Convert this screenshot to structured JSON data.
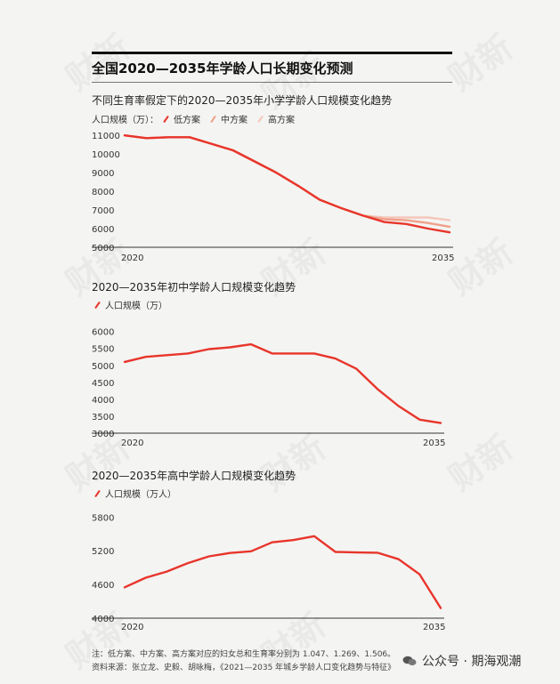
{
  "title": "全国2020—2035年学龄人口长期变化预测",
  "colors": {
    "low": "#e8352b",
    "mid": "#f0a08a",
    "high": "#f4c7bb",
    "axis": "#333333"
  },
  "charts": [
    {
      "title": "不同生育率假定下的2020—2035年小学学龄人口规模变化趋势",
      "legend_label": "人口规模（万）：",
      "legend_items": [
        "低方案",
        "中方案",
        "高方案"
      ]
    },
    {
      "title": "2020—2035年初中学龄人口规模变化趋势",
      "legend_label": "",
      "legend_items": [
        "人口规模（万）"
      ]
    },
    {
      "title": "2020—2035年高中学龄人口规模变化趋势",
      "legend_label": "",
      "legend_items": [
        "人口规模（万人）"
      ]
    }
  ],
  "chart_data": [
    {
      "type": "line",
      "title": "不同生育率假定下的2020—2035年小学学龄人口规模变化趋势",
      "ylabel": "人口规模（万）",
      "x": [
        2020,
        2021,
        2022,
        2023,
        2024,
        2025,
        2026,
        2027,
        2028,
        2029,
        2030,
        2031,
        2032,
        2033,
        2034,
        2035
      ],
      "xticks": [
        "2020",
        "2035"
      ],
      "yticks": [
        5000,
        6000,
        7000,
        8000,
        9000,
        10000,
        11000
      ],
      "ylim": [
        5000,
        11200
      ],
      "series": [
        {
          "name": "低方案",
          "values": [
            11000,
            10850,
            10900,
            10900,
            10550,
            10200,
            9600,
            9000,
            8300,
            7550,
            7100,
            6700,
            6350,
            6250,
            6000,
            5800
          ]
        },
        {
          "name": "中方案",
          "values": [
            11000,
            10850,
            10900,
            10900,
            10550,
            10200,
            9600,
            9000,
            8300,
            7550,
            7100,
            6700,
            6500,
            6450,
            6300,
            6100
          ]
        },
        {
          "name": "高方案",
          "values": [
            11000,
            10850,
            10900,
            10900,
            10550,
            10200,
            9600,
            9000,
            8300,
            7550,
            7100,
            6700,
            6600,
            6600,
            6600,
            6450
          ]
        }
      ]
    },
    {
      "type": "line",
      "title": "2020—2035年初中学龄人口规模变化趋势",
      "ylabel": "人口规模（万）",
      "x": [
        2020,
        2021,
        2022,
        2023,
        2024,
        2025,
        2026,
        2027,
        2028,
        2029,
        2030,
        2031,
        2032,
        2033,
        2034,
        2035
      ],
      "xticks": [
        "2020",
        "2035"
      ],
      "yticks": [
        3000,
        3500,
        4000,
        4500,
        5000,
        5500,
        6000
      ],
      "ylim": [
        3000,
        6200
      ],
      "series": [
        {
          "name": "人口规模（万）",
          "values": [
            5100,
            5250,
            5300,
            5350,
            5480,
            5530,
            5620,
            5350,
            5350,
            5350,
            5200,
            4900,
            4300,
            3800,
            3400,
            3300
          ]
        }
      ]
    },
    {
      "type": "line",
      "title": "2020—2035年高中学龄人口规模变化趋势",
      "ylabel": "人口规模（万人）",
      "x": [
        2020,
        2021,
        2022,
        2023,
        2024,
        2025,
        2026,
        2027,
        2028,
        2029,
        2030,
        2031,
        2032,
        2033,
        2034,
        2035
      ],
      "xticks": [
        "2020",
        "2035"
      ],
      "yticks": [
        4000,
        4600,
        5200,
        5800
      ],
      "ylim": [
        4000,
        5900
      ],
      "series": [
        {
          "name": "人口规模（万人）",
          "values": [
            4550,
            4720,
            4830,
            4980,
            5100,
            5160,
            5190,
            5350,
            5390,
            5460,
            5180,
            5170,
            5165,
            5050,
            4780,
            4180
          ]
        }
      ]
    }
  ],
  "footnote": {
    "line1": "注：低方案、中方案、高方案对应的妇女总和生育率分别为 1.047、1.269、1.506。",
    "line2": "资料来源：张立龙、史毅、胡咏梅，《2021—2035 年城乡学龄人口变化趋势与特征》"
  },
  "brand": "公众号 · 期海观潮"
}
